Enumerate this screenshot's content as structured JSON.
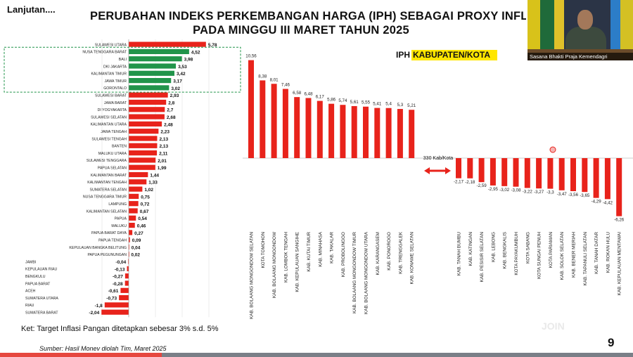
{
  "header": {
    "continued": "Lanjutan....",
    "title_line1": "PERUBAHAN INDEKS PERKEMBANGAN HARGA (IPH) SEBAGAI PROXY INFLASI",
    "title_line2": "PADA MINGGU III MARET TAHUN 2025"
  },
  "video": {
    "caption": "Sasana Bhakti Praja Kemendagri"
  },
  "note": "Ket: Target Inflasi Pangan ditetapkan sebesar 3% s.d. 5%",
  "source": "Sumber: Hasil Monev diolah Tim, Maret 2025",
  "page_number": "9",
  "colors": {
    "red": "#e8231b",
    "green": "#21944a",
    "highlight": "#ffe600",
    "bottom_accent": "#e6473f"
  },
  "chart_data": [
    {
      "type": "bar",
      "orientation": "horizontal",
      "categories": [
        "SULAWESI UTARA",
        "NUSA TENGGARA BARAT",
        "BALI",
        "DKI JAKARTA",
        "KALIMANTAN TIMUR",
        "JAWA TIMUR",
        "GORONTALO",
        "SULAWESI BARAT",
        "JAWA BARAT",
        "DI YOGYAKARTA",
        "SULAWESI SELATAN",
        "KALIMANTAN UTARA",
        "JAWA TENGAH",
        "SULAWESI TENGAH",
        "BANTEN",
        "MALUKU UTARA",
        "SULAWESI TENGGARA",
        "PAPUA SELATAN",
        "KALIMANTAN BARAT",
        "KALIMANTAN TENGAH",
        "SUMATERA SELATAN",
        "NUSA TENGGARA TIMUR",
        "LAMPUNG",
        "KALIMANTAN SELATAN",
        "PAPUA",
        "MALUKU",
        "PAPUA BARAT DAYA",
        "PAPUA TENGAH",
        "KEPULAUAN BANGKA BELITUNG",
        "PAPUA PEGUNUNGAN",
        "JAMBI",
        "KEPULAUAN RIAU",
        "BENGKULU",
        "PAPUA BARAT",
        "ACEH",
        "SUMATERA UTARA",
        "RIAU",
        "SUMATERA BARAT"
      ],
      "labels": [
        "5,78",
        "4,52",
        "3,98",
        "3,53",
        "3,42",
        "3,17",
        "3,02",
        "2,93",
        "2,8",
        "2,7",
        "2,68",
        "2,48",
        "2,23",
        "2,13",
        "2,13",
        "2,11",
        "2,01",
        "1,99",
        "1,44",
        "1,33",
        "1,02",
        "0,75",
        "0,72",
        "0,67",
        "0,54",
        "0,46",
        "0,27",
        "0,09",
        "0,04",
        "0,02",
        "-0,04",
        "-0,13",
        "-0,27",
        "-0,28",
        "-0,61",
        "-0,73",
        "-1,8",
        "-2,04"
      ],
      "values": [
        5.78,
        4.52,
        3.98,
        3.53,
        3.42,
        3.17,
        3.02,
        2.93,
        2.8,
        2.7,
        2.68,
        2.48,
        2.23,
        2.13,
        2.13,
        2.11,
        2.01,
        1.99,
        1.44,
        1.33,
        1.02,
        0.75,
        0.72,
        0.67,
        0.54,
        0.46,
        0.27,
        0.09,
        0.04,
        0.02,
        -0.04,
        -0.13,
        -0.27,
        -0.28,
        -0.61,
        -0.73,
        -1.8,
        -2.04
      ],
      "highlighted_range": [
        1,
        6
      ]
    },
    {
      "type": "bar",
      "title_prefix": "IPH",
      "title_highlight": "KABUPATEN/KOTA",
      "gap_label": "330 Kab/Kota",
      "categories": [
        "KAB. BOLAANG MONGONDOW SELATAN",
        "KOTA TOMOHON",
        "KAB. BOLAANG MONGONDOW",
        "KAB. LOMBOK TENGAH",
        "KAB. KEPULAUAN SANGIHE",
        "KAB. KUTAI TIMUR",
        "KAB. MINAHASA",
        "KAB. TAKALAR",
        "KAB. PROBOLINGGO",
        "KAB. BOLAANG MONGONDOW TIMUR",
        "KAB. BOLAANG MONGONDOW UTARA",
        "KAB. KARANGASEM",
        "KAB. PONOROGO",
        "KAB. TRENGGALEK",
        "KAB. KONAWE SELATAN",
        "KAB. TANAH BUMBU",
        "KAB. KATINGAN",
        "KAB. PESISIR SELATAN",
        "KAB. LEBONG",
        "KAB. BENGKALIS",
        "KOTA PAYAKUMBUH",
        "KOTA SABANG",
        "KOTA SUNGAI PENUH",
        "KOTA PARIAMAN",
        "KAB. SOLOK SELATAN",
        "KAB. BENER MERIAH",
        "KAB. TAPANULI SELATAN",
        "KAB. TANAH DATAR",
        "KAB. ROKAN HULU",
        "KAB. KEPULAUAN MENTAWAI"
      ],
      "labels": [
        "10,56",
        "8,38",
        "8,01",
        "7,46",
        "6,58",
        "6,48",
        "6,17",
        "5,86",
        "5,74",
        "5,61",
        "5,55",
        "5,41",
        "5,4",
        "5,3",
        "5,21",
        "-2,17",
        "-2,18",
        "-2,59",
        "-2,95",
        "-3,02",
        "-3,08",
        "-3,22",
        "-3,27",
        "-3,3",
        "-3,47",
        "-3,56",
        "-3,65",
        "-4,29",
        "-4,42",
        "-6,26"
      ],
      "values": [
        10.56,
        8.38,
        8.01,
        7.46,
        6.58,
        6.48,
        6.17,
        5.86,
        5.74,
        5.61,
        5.55,
        5.41,
        5.4,
        5.3,
        5.21,
        -2.17,
        -2.18,
        -2.59,
        -2.95,
        -3.02,
        -3.08,
        -3.22,
        -3.27,
        -3.3,
        -3.47,
        -3.56,
        -3.65,
        -4.29,
        -4.42,
        -6.26
      ]
    }
  ]
}
